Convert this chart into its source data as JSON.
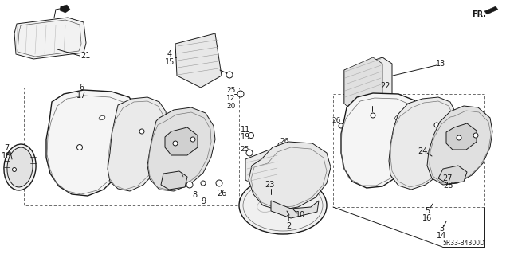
{
  "bg_color": "#ffffff",
  "line_color": "#1a1a1a",
  "diagram_code": "5R33-B4300D",
  "gray_light": "#e8e8e8",
  "gray_mid": "#cccccc",
  "gray_dark": "#aaaaaa",
  "hatch_color": "#888888"
}
